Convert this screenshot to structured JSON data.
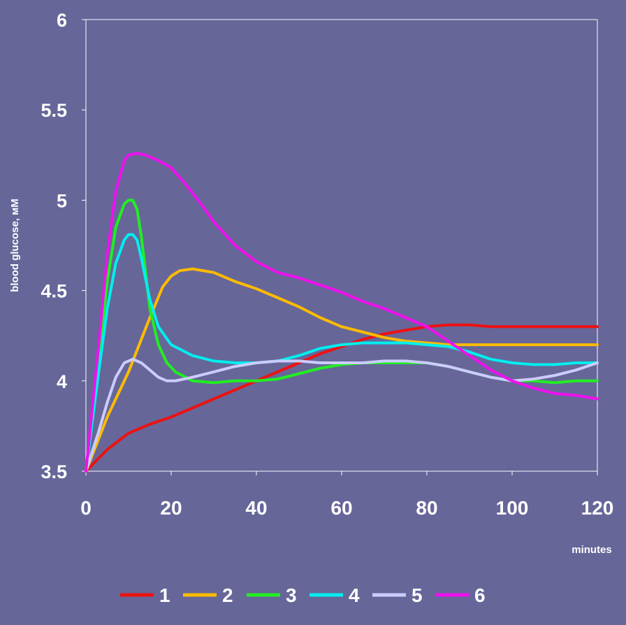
{
  "chart_data": {
    "type": "line",
    "xlabel": "minutes",
    "ylabel": "blood glucose, мМ",
    "xlim": [
      0,
      120
    ],
    "ylim": [
      3.5,
      6
    ],
    "xticks": [
      "0",
      "20",
      "40",
      "60",
      "80",
      "100",
      "120"
    ],
    "yticks": [
      "3.5",
      "4",
      "4.5",
      "5",
      "5.5",
      "6"
    ],
    "grid": false,
    "legend_position": "bottom",
    "series": [
      {
        "name": "1",
        "color": "#ee1111",
        "x": [
          0,
          5,
          10,
          15,
          20,
          25,
          30,
          35,
          40,
          45,
          50,
          55,
          60,
          65,
          70,
          75,
          80,
          85,
          90,
          95,
          100,
          105,
          110,
          115,
          120
        ],
        "y": [
          3.5,
          3.62,
          3.71,
          3.76,
          3.8,
          3.85,
          3.9,
          3.95,
          4.0,
          4.05,
          4.1,
          4.15,
          4.19,
          4.23,
          4.26,
          4.28,
          4.3,
          4.31,
          4.31,
          4.3,
          4.3,
          4.3,
          4.3,
          4.3,
          4.3
        ]
      },
      {
        "name": "2",
        "color": "#ffbb00",
        "x": [
          0,
          5,
          10,
          15,
          18,
          20,
          22,
          25,
          30,
          35,
          40,
          45,
          50,
          55,
          60,
          65,
          70,
          75,
          80,
          85,
          90,
          95,
          100,
          105,
          110,
          115,
          120
        ],
        "y": [
          3.5,
          3.8,
          4.05,
          4.35,
          4.52,
          4.58,
          4.61,
          4.62,
          4.6,
          4.55,
          4.51,
          4.46,
          4.41,
          4.35,
          4.3,
          4.27,
          4.24,
          4.22,
          4.21,
          4.2,
          4.2,
          4.2,
          4.2,
          4.2,
          4.2,
          4.2,
          4.2
        ]
      },
      {
        "name": "3",
        "color": "#22ee22",
        "x": [
          0,
          3,
          5,
          7,
          9,
          10,
          11,
          12,
          13,
          14,
          15,
          17,
          19,
          21,
          25,
          30,
          35,
          40,
          45,
          50,
          55,
          60,
          65,
          70,
          75,
          80,
          85,
          90,
          95,
          100,
          105,
          110,
          115,
          120
        ],
        "y": [
          3.5,
          4.1,
          4.55,
          4.85,
          4.98,
          5.0,
          5.0,
          4.95,
          4.8,
          4.6,
          4.4,
          4.2,
          4.1,
          4.05,
          4.0,
          3.99,
          4.0,
          4.0,
          4.01,
          4.04,
          4.07,
          4.09,
          4.1,
          4.1,
          4.1,
          4.1,
          4.08,
          4.05,
          4.02,
          4.0,
          4.0,
          3.99,
          4.0,
          4.0
        ]
      },
      {
        "name": "4",
        "color": "#00eeee",
        "x": [
          0,
          3,
          5,
          7,
          9,
          10,
          11,
          12,
          13,
          15,
          17,
          20,
          25,
          30,
          35,
          40,
          45,
          50,
          55,
          60,
          65,
          70,
          75,
          80,
          85,
          90,
          95,
          100,
          105,
          110,
          115,
          120
        ],
        "y": [
          3.5,
          4.05,
          4.4,
          4.65,
          4.78,
          4.81,
          4.81,
          4.78,
          4.68,
          4.45,
          4.3,
          4.2,
          4.14,
          4.11,
          4.1,
          4.1,
          4.11,
          4.14,
          4.18,
          4.2,
          4.21,
          4.21,
          4.21,
          4.2,
          4.19,
          4.16,
          4.12,
          4.1,
          4.09,
          4.09,
          4.1,
          4.1
        ]
      },
      {
        "name": "5",
        "color": "#ccccff",
        "x": [
          0,
          3,
          5,
          7,
          9,
          11,
          13,
          15,
          17,
          19,
          21,
          25,
          30,
          35,
          40,
          45,
          50,
          55,
          60,
          65,
          70,
          75,
          80,
          85,
          90,
          95,
          100,
          105,
          110,
          115,
          120
        ],
        "y": [
          3.5,
          3.72,
          3.88,
          4.02,
          4.1,
          4.12,
          4.1,
          4.06,
          4.02,
          4.0,
          4.0,
          4.02,
          4.05,
          4.08,
          4.1,
          4.11,
          4.11,
          4.1,
          4.1,
          4.1,
          4.11,
          4.11,
          4.1,
          4.08,
          4.05,
          4.02,
          4.0,
          4.01,
          4.03,
          4.06,
          4.1
        ]
      },
      {
        "name": "6",
        "color": "#ee11ee",
        "x": [
          0,
          3,
          5,
          7,
          9,
          10,
          12,
          14,
          17,
          20,
          23,
          27,
          30,
          35,
          40,
          45,
          50,
          55,
          60,
          65,
          70,
          75,
          80,
          85,
          90,
          95,
          100,
          105,
          110,
          115,
          120
        ],
        "y": [
          3.5,
          4.2,
          4.7,
          5.05,
          5.22,
          5.25,
          5.26,
          5.25,
          5.22,
          5.18,
          5.1,
          4.98,
          4.88,
          4.75,
          4.66,
          4.6,
          4.57,
          4.53,
          4.49,
          4.44,
          4.4,
          4.35,
          4.3,
          4.22,
          4.14,
          4.06,
          4.0,
          3.96,
          3.93,
          3.92,
          3.9
        ]
      }
    ]
  }
}
